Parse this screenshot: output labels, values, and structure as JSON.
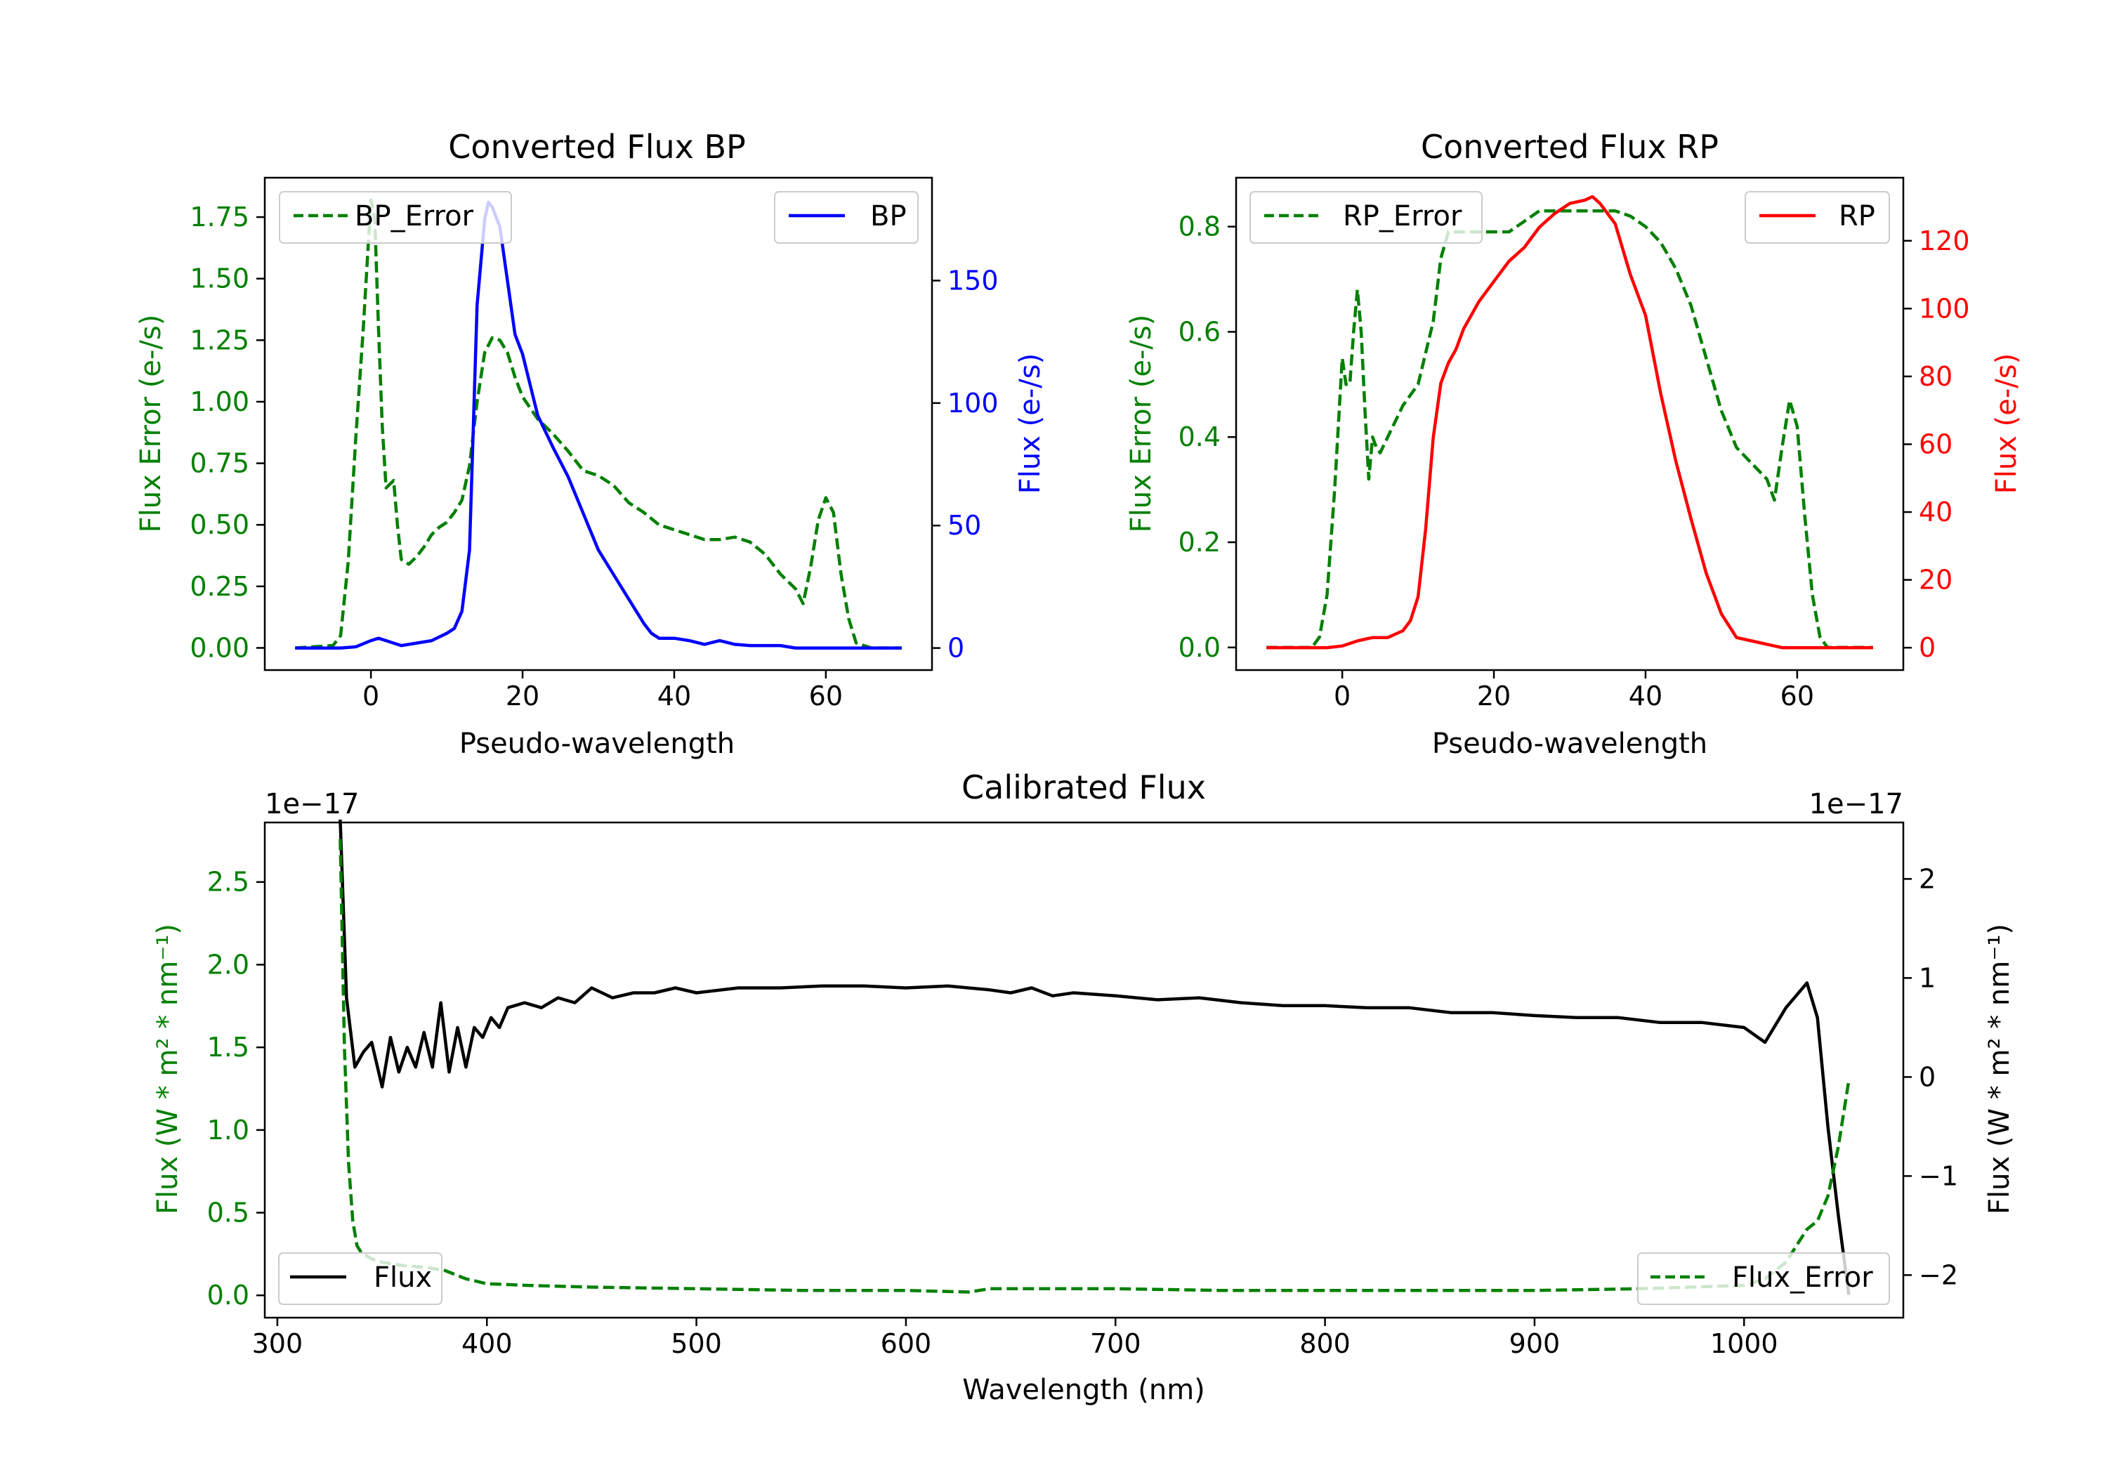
{
  "chart_data": [
    {
      "type": "line",
      "title": "Converted Flux BP",
      "xlabel": "Pseudo-wavelength",
      "xlim": [
        -14,
        74
      ],
      "xticks": [
        0,
        20,
        40,
        60
      ],
      "left_axis": {
        "label": "Flux Error (e-/s)",
        "color": "#008000",
        "ylim": [
          -0.09,
          1.91
        ],
        "ticks": [
          "0.00",
          "0.25",
          "0.50",
          "0.75",
          "1.00",
          "1.25",
          "1.50",
          "1.75"
        ],
        "tick_values": [
          0,
          0.25,
          0.5,
          0.75,
          1.0,
          1.25,
          1.5,
          1.75
        ]
      },
      "right_axis": {
        "label": "Flux (e-/s)",
        "color": "#0000ff",
        "ylim": [
          -9,
          192
        ],
        "ticks": [
          "0",
          "50",
          "100",
          "150"
        ],
        "tick_values": [
          0,
          50,
          100,
          150
        ]
      },
      "legend_left": "top-left",
      "legend_right": "top-right",
      "series": [
        {
          "name": "BP_Error",
          "axis": "left",
          "style": "dashed",
          "color": "#008000",
          "x": [
            -10,
            -5,
            -4,
            -3,
            -2,
            -1,
            0,
            0.5,
            1,
            1.5,
            2,
            3,
            3.5,
            4,
            5,
            6,
            7,
            8,
            9,
            10,
            11,
            12,
            13,
            14,
            15,
            16,
            17,
            18,
            19,
            20,
            22,
            24,
            26,
            28,
            30,
            32,
            34,
            36,
            38,
            40,
            42,
            44,
            46,
            48,
            50,
            52,
            54,
            56,
            57,
            58,
            59,
            60,
            61,
            62,
            63,
            64,
            66,
            70
          ],
          "values": [
            0,
            0.01,
            0.05,
            0.35,
            0.85,
            1.3,
            1.82,
            1.75,
            1.3,
            0.9,
            0.65,
            0.68,
            0.5,
            0.36,
            0.34,
            0.37,
            0.41,
            0.46,
            0.49,
            0.51,
            0.55,
            0.6,
            0.74,
            1.0,
            1.2,
            1.26,
            1.25,
            1.2,
            1.1,
            1.02,
            0.93,
            0.87,
            0.8,
            0.72,
            0.7,
            0.66,
            0.59,
            0.55,
            0.5,
            0.48,
            0.46,
            0.44,
            0.44,
            0.45,
            0.43,
            0.38,
            0.3,
            0.24,
            0.18,
            0.33,
            0.52,
            0.61,
            0.55,
            0.3,
            0.12,
            0.02,
            0,
            0
          ]
        },
        {
          "name": "BP",
          "axis": "right",
          "style": "solid",
          "color": "#0000ff",
          "x": [
            -10,
            -6,
            -4,
            -2,
            0,
            1,
            2,
            3,
            4,
            6,
            8,
            10,
            11,
            12,
            13,
            14,
            15,
            15.5,
            16,
            17,
            18,
            19,
            20,
            22,
            24,
            26,
            28,
            30,
            32,
            34,
            36,
            37,
            38,
            40,
            42,
            44,
            46,
            48,
            50,
            52,
            54,
            56,
            58,
            60,
            62,
            64,
            66,
            70
          ],
          "values": [
            0,
            0,
            0,
            0.5,
            3,
            4,
            3,
            2,
            1,
            2,
            3,
            6,
            8,
            15,
            40,
            140,
            175,
            182,
            180,
            172,
            150,
            128,
            120,
            95,
            82,
            70,
            55,
            40,
            30,
            20,
            10,
            6,
            4,
            4,
            3,
            1.5,
            3,
            1.5,
            1,
            1,
            1,
            0,
            0,
            0,
            0,
            0,
            0,
            0
          ]
        }
      ]
    },
    {
      "type": "line",
      "title": "Converted Flux RP",
      "xlabel": "Pseudo-wavelength",
      "xlim": [
        -14,
        74
      ],
      "xticks": [
        0,
        20,
        40,
        60
      ],
      "left_axis": {
        "label": "Flux Error (e-/s)",
        "color": "#008000",
        "ylim": [
          -0.043,
          0.893
        ],
        "ticks": [
          "0.0",
          "0.2",
          "0.4",
          "0.6",
          "0.8"
        ],
        "tick_values": [
          0,
          0.2,
          0.4,
          0.6,
          0.8
        ]
      },
      "right_axis": {
        "label": "Flux (e-/s)",
        "color": "#ff0000",
        "ylim": [
          -6.6,
          138.6
        ],
        "ticks": [
          "0",
          "20",
          "40",
          "60",
          "80",
          "100",
          "120"
        ],
        "tick_values": [
          0,
          20,
          40,
          60,
          80,
          100,
          120
        ]
      },
      "legend_left": "top-left",
      "legend_right": "top-right",
      "series": [
        {
          "name": "RP_Error",
          "axis": "left",
          "style": "dashed",
          "color": "#008000",
          "x": [
            -10,
            -4,
            -3,
            -2,
            -1,
            0,
            0.5,
            1,
            1.5,
            2,
            2.5,
            3,
            3.5,
            4,
            4.5,
            5,
            6,
            7,
            8,
            10,
            12,
            13,
            14,
            16,
            18,
            20,
            22,
            24,
            26,
            28,
            30,
            32,
            34,
            36,
            38,
            40,
            42,
            44,
            46,
            48,
            50,
            52,
            54,
            56,
            57,
            58,
            59,
            60,
            61,
            62,
            63,
            64,
            66,
            70
          ],
          "values": [
            0,
            0,
            0.02,
            0.1,
            0.3,
            0.55,
            0.5,
            0.5,
            0.6,
            0.68,
            0.6,
            0.45,
            0.32,
            0.4,
            0.38,
            0.37,
            0.4,
            0.43,
            0.46,
            0.5,
            0.62,
            0.74,
            0.79,
            0.79,
            0.79,
            0.79,
            0.79,
            0.81,
            0.83,
            0.83,
            0.83,
            0.83,
            0.83,
            0.83,
            0.82,
            0.8,
            0.77,
            0.72,
            0.65,
            0.55,
            0.45,
            0.38,
            0.35,
            0.32,
            0.28,
            0.38,
            0.47,
            0.42,
            0.25,
            0.1,
            0.02,
            0,
            0,
            0
          ]
        },
        {
          "name": "RP",
          "axis": "right",
          "style": "solid",
          "color": "#ff0000",
          "x": [
            -10,
            -2,
            0,
            2,
            4,
            6,
            8,
            9,
            10,
            11,
            12,
            13,
            14,
            15,
            16,
            18,
            20,
            22,
            24,
            26,
            28,
            30,
            32,
            33,
            34,
            36,
            38,
            40,
            42,
            44,
            46,
            48,
            50,
            52,
            54,
            56,
            58,
            60,
            62,
            64,
            66,
            70
          ],
          "values": [
            0,
            0,
            0.5,
            2,
            3,
            3,
            5,
            8,
            15,
            35,
            62,
            78,
            84,
            88,
            94,
            102,
            108,
            114,
            118,
            124,
            128,
            131,
            132,
            133,
            131,
            125,
            110,
            98,
            75,
            55,
            38,
            22,
            10,
            3,
            2,
            1,
            0,
            0,
            0,
            0,
            0,
            0
          ]
        }
      ]
    },
    {
      "type": "line",
      "title": "Calibrated Flux",
      "xlabel": "Wavelength (nm)",
      "xlim": [
        294,
        1076
      ],
      "xticks": [
        300,
        400,
        500,
        600,
        700,
        800,
        900,
        1000
      ],
      "left_axis": {
        "label": "Flux (W * m² * nm⁻¹)",
        "color": "#008000",
        "offset_text": "1e−17",
        "ylim": [
          -0.135,
          2.86
        ],
        "ticks": [
          "0.0",
          "0.5",
          "1.0",
          "1.5",
          "2.0",
          "2.5"
        ],
        "tick_values": [
          0,
          0.5,
          1.0,
          1.5,
          2.0,
          2.5
        ]
      },
      "right_axis": {
        "label": "Flux (W * m² * nm⁻¹)",
        "color": "#000000",
        "offset_text": "1e−17",
        "ylim": [
          -2.43,
          2.57
        ],
        "ticks": [
          "−2",
          "−1",
          "0",
          "1",
          "2"
        ],
        "tick_values": [
          -2,
          -1,
          0,
          1,
          2
        ]
      },
      "legend_left": "bottom-left",
      "legend_right": "bottom-right",
      "series": [
        {
          "name": "Flux",
          "axis": "right",
          "style": "solid",
          "color": "#000000",
          "x": [
            330,
            333,
            337,
            341,
            345,
            350,
            354,
            358,
            362,
            366,
            370,
            374,
            378,
            382,
            386,
            390,
            394,
            398,
            402,
            406,
            410,
            418,
            426,
            434,
            442,
            450,
            460,
            470,
            480,
            490,
            500,
            520,
            540,
            560,
            580,
            600,
            620,
            640,
            650,
            660,
            670,
            680,
            700,
            720,
            740,
            760,
            780,
            800,
            820,
            840,
            860,
            880,
            900,
            920,
            940,
            960,
            980,
            1000,
            1010,
            1020,
            1030,
            1035,
            1040,
            1045,
            1050
          ],
          "values": [
            2.6,
            0.8,
            0.1,
            0.25,
            0.35,
            -0.1,
            0.4,
            0.05,
            0.3,
            0.1,
            0.45,
            0.1,
            0.75,
            0.05,
            0.5,
            0.1,
            0.5,
            0.4,
            0.6,
            0.5,
            0.7,
            0.75,
            0.7,
            0.8,
            0.75,
            0.9,
            0.8,
            0.85,
            0.85,
            0.9,
            0.85,
            0.9,
            0.9,
            0.92,
            0.92,
            0.9,
            0.92,
            0.88,
            0.85,
            0.9,
            0.82,
            0.85,
            0.82,
            0.78,
            0.8,
            0.75,
            0.72,
            0.72,
            0.7,
            0.7,
            0.65,
            0.65,
            0.62,
            0.6,
            0.6,
            0.55,
            0.55,
            0.5,
            0.35,
            0.7,
            0.95,
            0.6,
            -0.5,
            -1.4,
            -2.2
          ]
        },
        {
          "name": "Flux_Error",
          "axis": "left",
          "style": "dashed",
          "color": "#008000",
          "x": [
            330,
            332,
            334,
            336,
            338,
            340,
            345,
            350,
            360,
            370,
            380,
            390,
            400,
            420,
            450,
            500,
            550,
            600,
            630,
            640,
            660,
            700,
            750,
            800,
            850,
            900,
            950,
            1000,
            1010,
            1020,
            1025,
            1030,
            1035,
            1040,
            1045,
            1050
          ],
          "values": [
            2.76,
            1.5,
            0.8,
            0.45,
            0.3,
            0.26,
            0.22,
            0.2,
            0.18,
            0.17,
            0.15,
            0.1,
            0.07,
            0.06,
            0.05,
            0.04,
            0.03,
            0.03,
            0.02,
            0.04,
            0.04,
            0.04,
            0.03,
            0.03,
            0.03,
            0.03,
            0.04,
            0.06,
            0.1,
            0.2,
            0.3,
            0.4,
            0.45,
            0.6,
            0.9,
            1.3
          ]
        }
      ]
    }
  ]
}
